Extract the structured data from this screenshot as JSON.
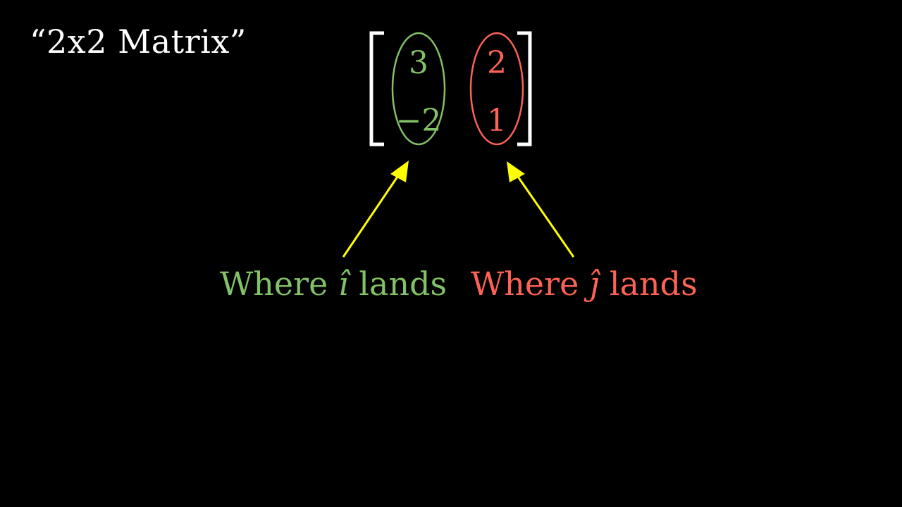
{
  "title": "“2x2 Matrix”",
  "matrix": {
    "column1": [
      "3",
      "−2"
    ],
    "column2": [
      "2",
      "1"
    ]
  },
  "labels": {
    "i_prefix": "Where ",
    "i_symbol": "î",
    "i_suffix": " lands",
    "j_prefix": "Where ",
    "j_symbol": "ĵ",
    "j_suffix": " lands"
  },
  "colors": {
    "background": "#000000",
    "text": "#ffffff",
    "i_hat": "#83c167",
    "j_hat": "#fc6255",
    "arrow": "#ffff00",
    "bracket": "#ffffff"
  }
}
